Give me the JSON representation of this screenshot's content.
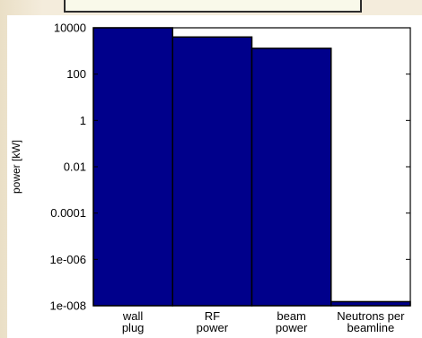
{
  "chart_data": {
    "type": "bar",
    "categories": [
      "wall plug",
      "RF power",
      "beam power",
      "Neutrons per beamline"
    ],
    "category_lines": [
      [
        "wall",
        "plug"
      ],
      [
        "RF",
        "power"
      ],
      [
        "beam",
        "power"
      ],
      [
        "Neutrons per",
        "beamline"
      ]
    ],
    "values": [
      10000,
      4000,
      1300,
      1.5e-08
    ],
    "ylabel": "power [kW]",
    "yscale": "log",
    "ylim": [
      1e-08,
      10000
    ],
    "yticks": [
      1e-08,
      1e-06,
      0.0001,
      0.01,
      1,
      100,
      10000
    ],
    "ytick_labels": [
      "1e-008",
      "1e-006",
      "0.0001",
      "0.01",
      "1",
      "100",
      "10000"
    ],
    "grid": false,
    "bar_color": "#00008b"
  }
}
